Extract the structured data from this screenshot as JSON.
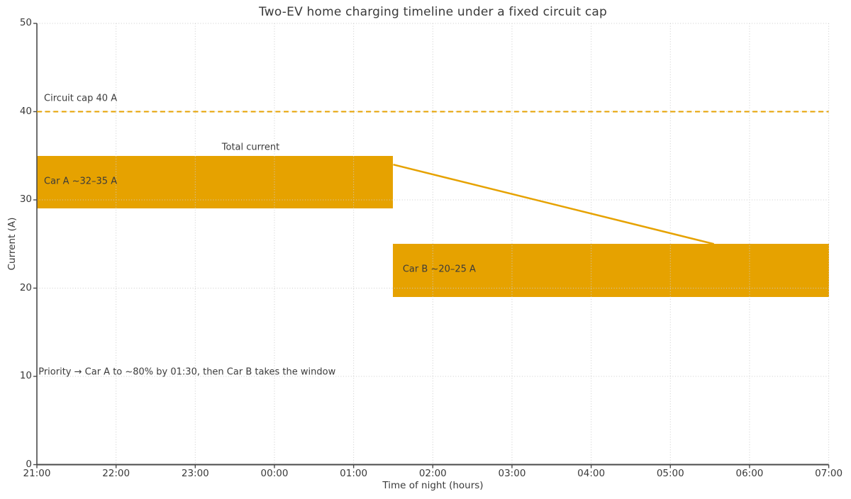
{
  "chart_data": {
    "type": "bar",
    "variant": "horizontal-time-span-bars",
    "title": "Two-EV home charging timeline under a fixed circuit cap",
    "xlabel": "Time of night (hours)",
    "ylabel": "Current (A)",
    "x_tick_labels": [
      "21:00",
      "22:00",
      "23:00",
      "00:00",
      "01:00",
      "02:00",
      "03:00",
      "04:00",
      "05:00",
      "06:00",
      "07:00"
    ],
    "y_ticks": [
      0,
      10,
      20,
      30,
      40,
      50
    ],
    "ylim": [
      0,
      50
    ],
    "grid": "dotted, light gray, drawn over bars",
    "legend": "none (inline text labels)",
    "colors": {
      "accent_orange": "#E6A200",
      "text": "#3a3a3a",
      "grid": "#cccccc",
      "spine": "#4a4a4a"
    },
    "cap_line": {
      "value_amps": 40,
      "style": "dashed horizontal line",
      "label": "Circuit cap 40 A",
      "label_x": 0.09,
      "label_y": 41.5
    },
    "bars": [
      {
        "name": "car-a",
        "label": "Car A ~32–35 A",
        "start_time": "21:00",
        "end_time": "01:30",
        "x_start_hours": 0,
        "x_end_hours": 4.5,
        "y_low_amps": 29,
        "y_high_amps": 35,
        "label_x": 0.09,
        "label_y": 32.1
      },
      {
        "name": "car-b",
        "label": "Car B ~20–25 A",
        "start_time": "01:30",
        "end_time": "07:00",
        "x_start_hours": 4.5,
        "x_end_hours": 10,
        "y_low_amps": 19,
        "y_high_amps": 25,
        "label_x": 4.62,
        "label_y": 22.1
      }
    ],
    "total_line": {
      "label": "Total current",
      "points_hours_amps": [
        [
          4.5,
          34
        ],
        [
          8.55,
          25
        ]
      ],
      "label_x": 2.7,
      "label_y": 35.95
    },
    "annotation": {
      "text": "Priority → Car A to ~80% by 01:30, then Car B takes the window",
      "x": 0.02,
      "y": 10.45
    }
  }
}
